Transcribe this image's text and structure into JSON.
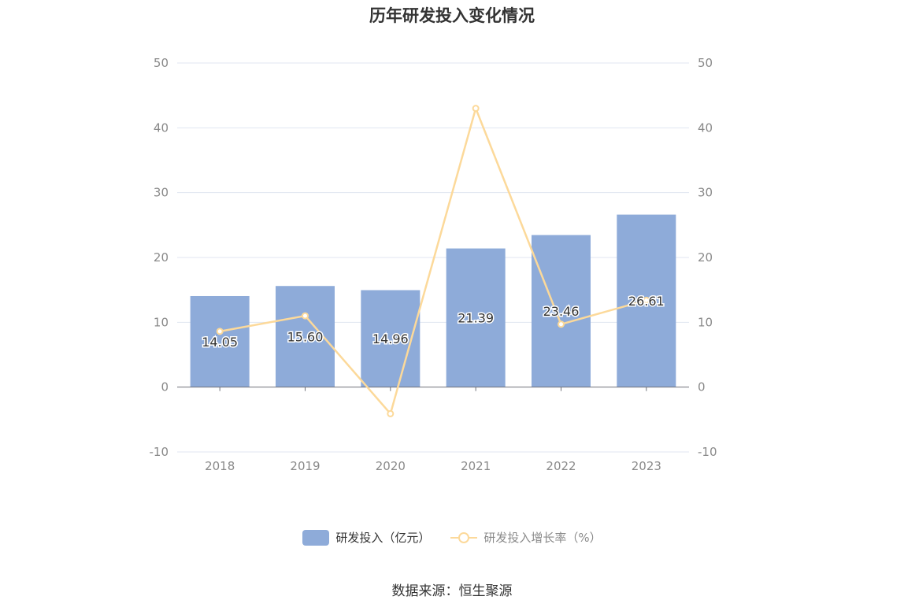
{
  "title": "历年研发投入变化情况",
  "source": "数据来源：恒生聚源",
  "colors": {
    "bar": "#8eabd9",
    "line": "#fcd99a",
    "grid": "#e0e6f1",
    "axis": "#6e7079",
    "tick": "#8a8a8a"
  },
  "chart_data": {
    "type": "bar",
    "categories": [
      "2018",
      "2019",
      "2020",
      "2021",
      "2022",
      "2023"
    ],
    "series": [
      {
        "name": "研发投入（亿元）",
        "type": "bar",
        "axis": "left",
        "values": [
          14.05,
          15.6,
          14.96,
          21.39,
          23.46,
          26.61
        ],
        "labels": [
          "14.05",
          "15.60",
          "14.96",
          "21.39",
          "23.46",
          "26.61"
        ]
      },
      {
        "name": "研发投入增长率（%）",
        "type": "line",
        "axis": "right",
        "values": [
          8.6,
          11.0,
          -4.1,
          43.0,
          9.7,
          13.4
        ]
      }
    ],
    "ylim": [
      -10,
      50
    ],
    "y2lim": [
      -10,
      50
    ],
    "yticks": [
      "-10",
      "0",
      "10",
      "20",
      "30",
      "40",
      "50"
    ],
    "y2ticks": [
      "-10",
      "0",
      "10",
      "20",
      "30",
      "40",
      "50"
    ],
    "grid": true,
    "legend_position": "bottom"
  }
}
